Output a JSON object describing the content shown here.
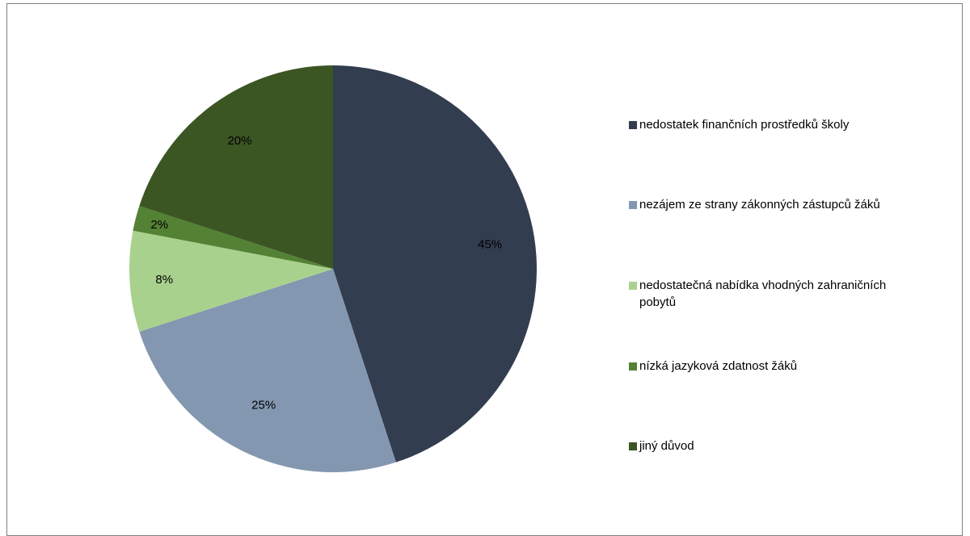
{
  "chart_data": {
    "type": "pie",
    "title": "",
    "categories": [
      "nedostatek finančních prostředků školy",
      "nezájem ze strany zákonných zástupců žáků",
      "nedostatečná nabídka vhodných zahraničních pobytů",
      "nízká jazyková zdatnost žáků",
      "jiný důvod"
    ],
    "values": [
      45,
      25,
      8,
      2,
      20
    ],
    "labels": [
      "45%",
      "25%",
      "8%",
      "2%",
      "20%"
    ],
    "colors": [
      "#333d50",
      "#8497b0",
      "#a9d18e",
      "#548235",
      "#3b5523"
    ],
    "legend_position": "right",
    "start": "12 o'clock",
    "direction": "clockwise"
  },
  "legend": {
    "items": [
      {
        "label": "nedostatek finančních prostředků školy"
      },
      {
        "label": "nezájem ze strany zákonných zástupců žáků"
      },
      {
        "label": "nedostatečná nabídka vhodných zahraničních pobytů"
      },
      {
        "label": "nízká jazyková zdatnost žáků"
      },
      {
        "label": "jiný důvod"
      }
    ]
  }
}
